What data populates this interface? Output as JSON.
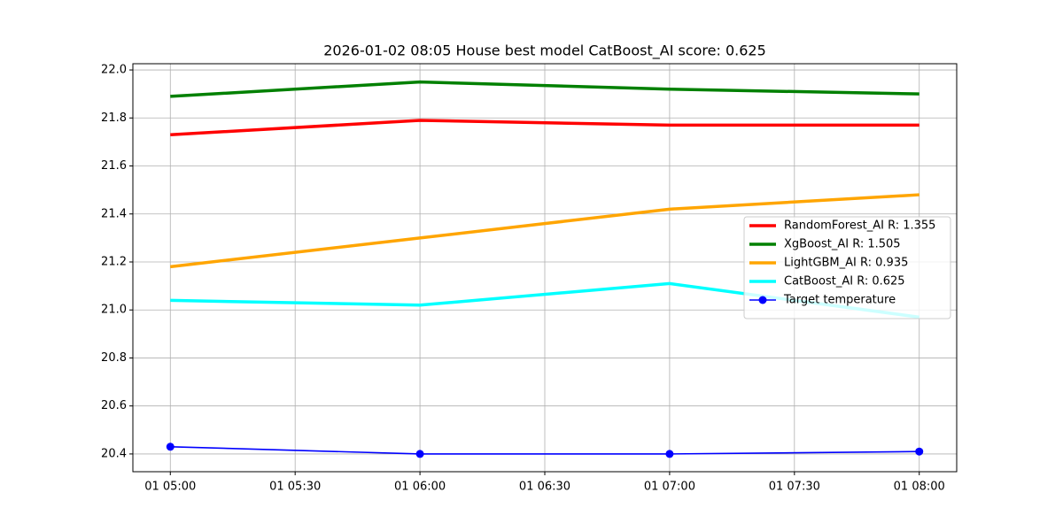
{
  "chart_data": {
    "type": "line",
    "title": "2026-01-02 08:05 House best model CatBoost_AI score: 0.625",
    "x": [
      "01 05:00",
      "01 06:00",
      "01 07:00",
      "01 08:00"
    ],
    "xlim": [
      "01 04:51",
      "01 08:09"
    ],
    "xticks": [
      "01 05:00",
      "01 05:30",
      "01 06:00",
      "01 06:30",
      "01 07:00",
      "01 07:30",
      "01 08:00"
    ],
    "ylim": [
      20.326,
      22.026
    ],
    "yticks": [
      20.4,
      20.6,
      20.8,
      {
        "value": 21.0,
        "label": "21.0"
      },
      21.2,
      21.4,
      21.6,
      21.8,
      {
        "value": 22.0,
        "label": "22.0"
      }
    ],
    "grid": true,
    "legend": "center right",
    "series": [
      {
        "name": "RandomForest_AI R: 1.355",
        "color": "#ff0000",
        "values": [
          21.73,
          21.79,
          21.77,
          21.77
        ]
      },
      {
        "name": "XgBoost_AI R: 1.505",
        "color": "#008000",
        "values": [
          21.89,
          21.95,
          21.92,
          21.9
        ]
      },
      {
        "name": "LightGBM_AI R: 0.935",
        "color": "#ffa500",
        "values": [
          21.18,
          21.3,
          21.42,
          21.48
        ]
      },
      {
        "name": "CatBoost_AI R: 0.625",
        "color": "#00ffff",
        "values": [
          21.04,
          21.02,
          21.11,
          20.97
        ]
      },
      {
        "name": "Target temperature",
        "color": "#0000ff",
        "marker": "o",
        "values": [
          20.43,
          20.4,
          20.4,
          20.41
        ]
      }
    ]
  }
}
